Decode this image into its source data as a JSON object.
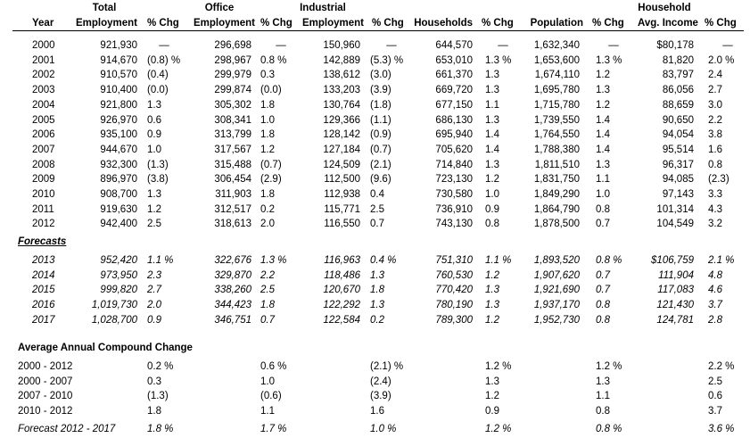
{
  "headers": {
    "row1": [
      "Total",
      "Office",
      "Industrial",
      "Household"
    ],
    "row2": [
      "Year",
      "Employment",
      "% Chg",
      "Employment",
      "% Chg",
      "Employment",
      "% Chg",
      "Households",
      "% Chg",
      "Population",
      "% Chg",
      "Avg. Income",
      "% Chg"
    ]
  },
  "historical": [
    [
      "2000",
      "921,930",
      "—",
      "296,698",
      "—",
      "150,960",
      "—",
      "644,570",
      "—",
      "1,632,340",
      "—",
      "$80,178",
      "—"
    ],
    [
      "2001",
      "914,670",
      "(0.8) %",
      "298,967",
      "0.8  %",
      "142,889",
      "(5.3) %",
      "653,010",
      "1.3  %",
      "1,653,600",
      "1.3  %",
      "81,820",
      "2.0  %"
    ],
    [
      "2002",
      "910,570",
      "(0.4)",
      "299,979",
      "0.3",
      "138,612",
      "(3.0)",
      "661,370",
      "1.3",
      "1,674,110",
      "1.2",
      "83,797",
      "2.4"
    ],
    [
      "2003",
      "910,400",
      "(0.0)",
      "299,874",
      "(0.0)",
      "133,203",
      "(3.9)",
      "669,720",
      "1.3",
      "1,695,780",
      "1.3",
      "86,056",
      "2.7"
    ],
    [
      "2004",
      "921,800",
      "1.3",
      "305,302",
      "1.8",
      "130,764",
      "(1.8)",
      "677,150",
      "1.1",
      "1,715,780",
      "1.2",
      "88,659",
      "3.0"
    ],
    [
      "2005",
      "926,970",
      "0.6",
      "308,341",
      "1.0",
      "129,366",
      "(1.1)",
      "686,130",
      "1.3",
      "1,739,550",
      "1.4",
      "90,650",
      "2.2"
    ],
    [
      "2006",
      "935,100",
      "0.9",
      "313,799",
      "1.8",
      "128,142",
      "(0.9)",
      "695,940",
      "1.4",
      "1,764,550",
      "1.4",
      "94,054",
      "3.8"
    ],
    [
      "2007",
      "944,670",
      "1.0",
      "317,567",
      "1.2",
      "127,184",
      "(0.7)",
      "705,620",
      "1.4",
      "1,788,380",
      "1.4",
      "95,514",
      "1.6"
    ],
    [
      "2008",
      "932,300",
      "(1.3)",
      "315,488",
      "(0.7)",
      "124,509",
      "(2.1)",
      "714,840",
      "1.3",
      "1,811,510",
      "1.3",
      "96,317",
      "0.8"
    ],
    [
      "2009",
      "896,970",
      "(3.8)",
      "306,454",
      "(2.9)",
      "112,500",
      "(9.6)",
      "723,130",
      "1.2",
      "1,831,750",
      "1.1",
      "94,085",
      "(2.3)"
    ],
    [
      "2010",
      "908,700",
      "1.3",
      "311,903",
      "1.8",
      "112,938",
      "0.4",
      "730,580",
      "1.0",
      "1,849,290",
      "1.0",
      "97,143",
      "3.3"
    ],
    [
      "2011",
      "919,630",
      "1.2",
      "312,517",
      "0.2",
      "115,771",
      "2.5",
      "736,910",
      "0.9",
      "1,864,790",
      "0.8",
      "101,314",
      "4.3"
    ],
    [
      "2012",
      "942,400",
      "2.5",
      "318,613",
      "2.0",
      "116,550",
      "0.7",
      "743,130",
      "0.8",
      "1,878,500",
      "0.7",
      "104,549",
      "3.2"
    ]
  ],
  "forecasts_label": "Forecasts",
  "forecasts": [
    [
      "2013",
      "952,420",
      "1.1  %",
      "322,676",
      "1.3  %",
      "116,963",
      "0.4  %",
      "751,310",
      "1.1  %",
      "1,893,520",
      "0.8  %",
      "$106,759",
      "2.1  %"
    ],
    [
      "2014",
      "973,950",
      "2.3",
      "329,870",
      "2.2",
      "118,486",
      "1.3",
      "760,530",
      "1.2",
      "1,907,620",
      "0.7",
      "111,904",
      "4.8"
    ],
    [
      "2015",
      "999,820",
      "2.7",
      "338,260",
      "2.5",
      "120,670",
      "1.8",
      "770,420",
      "1.3",
      "1,921,690",
      "0.7",
      "117,083",
      "4.6"
    ],
    [
      "2016",
      "1,019,730",
      "2.0",
      "344,423",
      "1.8",
      "122,292",
      "1.3",
      "780,190",
      "1.3",
      "1,937,170",
      "0.8",
      "121,430",
      "3.7"
    ],
    [
      "2017",
      "1,028,700",
      "0.9",
      "346,751",
      "0.7",
      "122,584",
      "0.2",
      "789,300",
      "1.2",
      "1,952,730",
      "0.8",
      "124,781",
      "2.8"
    ]
  ],
  "compound_label": "Average Annual Compound Change",
  "compound": [
    [
      "2000 - 2012",
      "0.2  %",
      "0.6  %",
      "(2.1) %",
      "1.2  %",
      "1.2  %",
      "2.2  %"
    ],
    [
      "2000 - 2007",
      "0.3",
      "1.0",
      "(2.4)",
      "1.3",
      "1.3",
      "2.5"
    ],
    [
      "2007 - 2010",
      "(1.3)",
      "(0.6)",
      "(3.9)",
      "1.2",
      "1.1",
      "0.6"
    ],
    [
      "2010 - 2012",
      "1.8",
      "1.1",
      "1.6",
      "0.9",
      "0.8",
      "3.7"
    ]
  ],
  "forecast_compound": [
    "Forecast 2012 - 2017",
    "1.8  %",
    "1.7  %",
    "1.0  %",
    "1.2  %",
    "0.8  %",
    "3.6  %"
  ]
}
